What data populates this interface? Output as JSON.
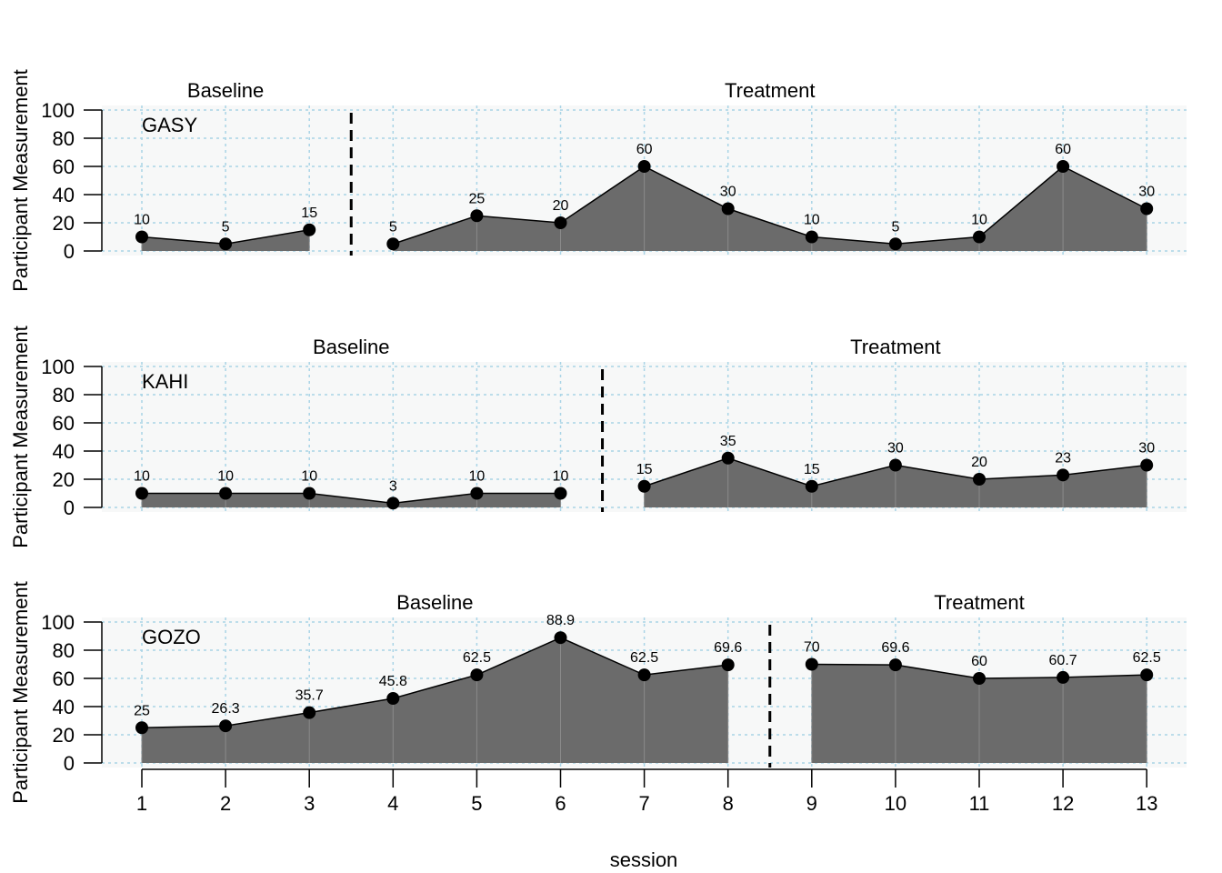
{
  "chart_data": {
    "type": "area",
    "xlabel": "session",
    "ylabel": "Participant Measurement",
    "ylim": [
      0,
      100
    ],
    "yticks": [
      0,
      20,
      40,
      60,
      80,
      100
    ],
    "x": [
      1,
      2,
      3,
      4,
      5,
      6,
      7,
      8,
      9,
      10,
      11,
      12,
      13
    ],
    "grid": true,
    "colors": {
      "fill": "#6b6b6b",
      "line": "#000000",
      "point": "#000000",
      "grid": "#a9d4e6",
      "panel_bg": "#f7f8f8"
    },
    "cases": [
      {
        "name": "GASY",
        "phase_change_after": 3,
        "phases": [
          {
            "label": "Baseline",
            "x": [
              1,
              2,
              3
            ],
            "values": [
              10,
              5,
              15
            ],
            "labels": [
              "10",
              "5",
              "15"
            ]
          },
          {
            "label": "Treatment",
            "x": [
              4,
              5,
              6,
              7,
              8,
              9,
              10,
              11,
              12,
              13
            ],
            "values": [
              5,
              25,
              20,
              60,
              30,
              10,
              5,
              10,
              60,
              30
            ],
            "labels": [
              "5",
              "25",
              "20",
              "60",
              "30",
              "10",
              "5",
              "10",
              "60",
              "30"
            ]
          }
        ]
      },
      {
        "name": "KAHI",
        "phase_change_after": 6,
        "phases": [
          {
            "label": "Baseline",
            "x": [
              1,
              2,
              3,
              4,
              5,
              6
            ],
            "values": [
              10,
              10,
              10,
              3,
              10,
              10
            ],
            "labels": [
              "10",
              "10",
              "10",
              "3",
              "10",
              "10"
            ]
          },
          {
            "label": "Treatment",
            "x": [
              7,
              8,
              9,
              10,
              11,
              12,
              13
            ],
            "values": [
              15,
              35,
              15,
              30,
              20,
              23,
              30
            ],
            "labels": [
              "15",
              "35",
              "15",
              "30",
              "20",
              "23",
              "30"
            ]
          }
        ]
      },
      {
        "name": "GOZO",
        "phase_change_after": 8,
        "phases": [
          {
            "label": "Baseline",
            "x": [
              1,
              2,
              3,
              4,
              5,
              6,
              7,
              8
            ],
            "values": [
              25,
              26.3,
              35.7,
              45.8,
              62.5,
              88.9,
              62.5,
              69.6
            ],
            "labels": [
              "25",
              "26.3",
              "35.7",
              "45.8",
              "62.5",
              "88.9",
              "62.5",
              "69.6"
            ]
          },
          {
            "label": "Treatment",
            "x": [
              9,
              10,
              11,
              12,
              13
            ],
            "values": [
              70,
              69.6,
              60,
              60.7,
              62.5
            ],
            "labels": [
              "70",
              "69.6",
              "60",
              "60.7",
              "62.5"
            ]
          }
        ]
      }
    ]
  }
}
